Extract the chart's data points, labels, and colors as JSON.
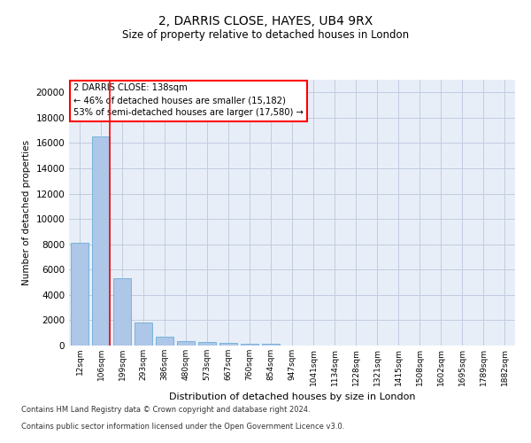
{
  "title_line1": "2, DARRIS CLOSE, HAYES, UB4 9RX",
  "title_line2": "Size of property relative to detached houses in London",
  "xlabel": "Distribution of detached houses by size in London",
  "ylabel": "Number of detached properties",
  "categories": [
    "12sqm",
    "106sqm",
    "199sqm",
    "293sqm",
    "386sqm",
    "480sqm",
    "573sqm",
    "667sqm",
    "760sqm",
    "854sqm",
    "947sqm",
    "1041sqm",
    "1134sqm",
    "1228sqm",
    "1321sqm",
    "1415sqm",
    "1508sqm",
    "1602sqm",
    "1695sqm",
    "1789sqm",
    "1882sqm"
  ],
  "values": [
    8100,
    16500,
    5300,
    1850,
    700,
    350,
    270,
    210,
    170,
    120,
    0,
    0,
    0,
    0,
    0,
    0,
    0,
    0,
    0,
    0,
    0
  ],
  "bar_color": "#aec6e8",
  "bar_edge_color": "#6aaed6",
  "annotation_text": "2 DARRIS CLOSE: 138sqm\n← 46% of detached houses are smaller (15,182)\n53% of semi-detached houses are larger (17,580) →",
  "annotation_box_color": "white",
  "annotation_box_edge": "red",
  "ylim": [
    0,
    21000
  ],
  "yticks": [
    0,
    2000,
    4000,
    6000,
    8000,
    10000,
    12000,
    14000,
    16000,
    18000,
    20000
  ],
  "footer_line1": "Contains HM Land Registry data © Crown copyright and database right 2024.",
  "footer_line2": "Contains public sector information licensed under the Open Government Licence v3.0.",
  "background_color": "#e8eef8",
  "grid_color": "#c0cce0"
}
